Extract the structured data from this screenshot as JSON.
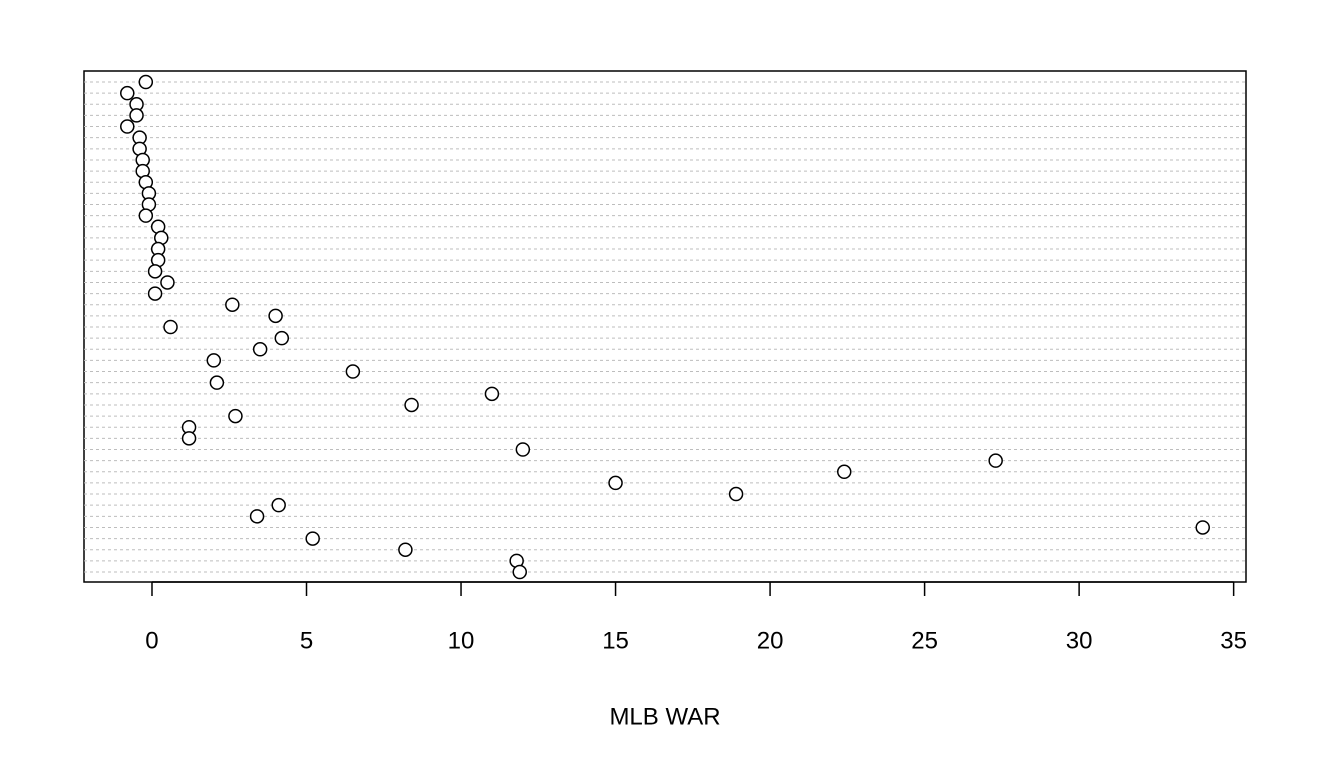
{
  "chart_data": {
    "type": "dotchart",
    "x_label": "MLB WAR",
    "categories": [
      null,
      null,
      null,
      null,
      null,
      null,
      null,
      null,
      null,
      null,
      null,
      null,
      null,
      null,
      null,
      null,
      null,
      null,
      null,
      null,
      null,
      null,
      null,
      null,
      null,
      null,
      null,
      null,
      null,
      null,
      null,
      null,
      null,
      null,
      null,
      null,
      null,
      null,
      null,
      null,
      null,
      null,
      null,
      null,
      null
    ],
    "values": [
      -0.2,
      -0.8,
      -0.5,
      -0.5,
      -0.8,
      -0.4,
      -0.4,
      -0.3,
      -0.3,
      -0.2,
      -0.1,
      -0.1,
      -0.2,
      0.2,
      0.3,
      0.2,
      0.2,
      0.1,
      0.5,
      0.1,
      2.6,
      4.0,
      0.6,
      4.2,
      3.5,
      2.0,
      6.5,
      2.1,
      11.0,
      8.4,
      2.7,
      1.2,
      1.2,
      12.0,
      27.3,
      22.4,
      15.0,
      18.9,
      4.1,
      3.4,
      34.0,
      5.2,
      8.2,
      11.8,
      11.9
    ],
    "xlim": [
      -2.2,
      35.4
    ],
    "xticks": [
      0,
      5,
      10,
      15,
      20,
      25,
      30,
      35
    ],
    "grid": true,
    "color": "#ffffff"
  }
}
